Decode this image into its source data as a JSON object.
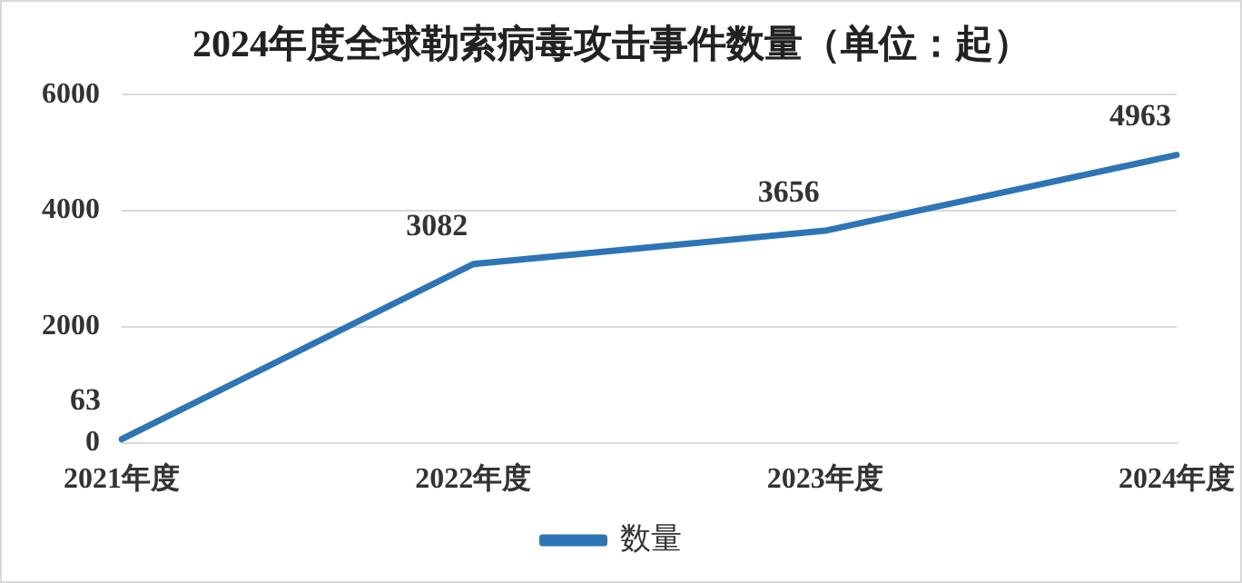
{
  "chart_data": {
    "type": "line",
    "title": "2024年度全球勒索病毒攻击事件数量（单位：起）",
    "categories": [
      "2021年度",
      "2022年度",
      "2023年度",
      "2024年度"
    ],
    "series": [
      {
        "name": "数量",
        "color": "#2e75b6",
        "values": [
          63,
          3082,
          3656,
          4963
        ]
      }
    ],
    "ylim": [
      0,
      6000
    ],
    "yticks": [
      0,
      2000,
      4000,
      6000
    ],
    "grid": "y",
    "legend": "bottom",
    "data_labels": true,
    "marker": "none",
    "line_style": "solid"
  }
}
